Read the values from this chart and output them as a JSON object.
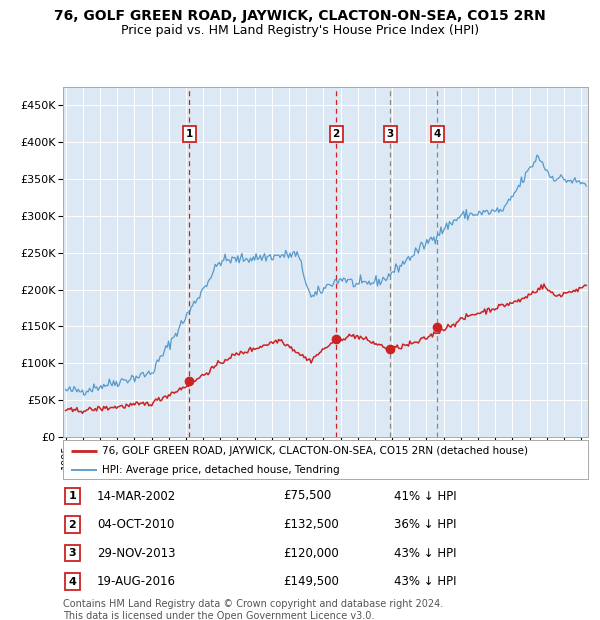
{
  "title": "76, GOLF GREEN ROAD, JAYWICK, CLACTON-ON-SEA, CO15 2RN",
  "subtitle": "Price paid vs. HM Land Registry's House Price Index (HPI)",
  "ylim": [
    0,
    475000
  ],
  "yticks": [
    0,
    50000,
    100000,
    150000,
    200000,
    250000,
    300000,
    350000,
    400000,
    450000
  ],
  "ytick_labels": [
    "£0",
    "£50K",
    "£100K",
    "£150K",
    "£200K",
    "£250K",
    "£300K",
    "£350K",
    "£400K",
    "£450K"
  ],
  "background_color": "#ffffff",
  "plot_bg_color": "#dce9f5",
  "grid_color": "#ffffff",
  "hpi_color": "#5599cc",
  "price_color": "#cc2222",
  "sale_marker_color": "#cc2222",
  "dashed_line_color_red": "#cc2222",
  "dashed_line_color_gray": "#888888",
  "transactions": [
    {
      "label": "1",
      "date": "14-MAR-2002",
      "date_num": 2002.2,
      "price": 75500,
      "pct": "41% ↓ HPI"
    },
    {
      "label": "2",
      "date": "04-OCT-2010",
      "date_num": 2010.75,
      "price": 132500,
      "pct": "36% ↓ HPI"
    },
    {
      "label": "3",
      "date": "29-NOV-2013",
      "date_num": 2013.9,
      "price": 120000,
      "pct": "43% ↓ HPI"
    },
    {
      "label": "4",
      "date": "19-AUG-2016",
      "date_num": 2016.63,
      "price": 149500,
      "pct": "43% ↓ HPI"
    }
  ],
  "legend_entries": [
    "76, GOLF GREEN ROAD, JAYWICK, CLACTON-ON-SEA, CO15 2RN (detached house)",
    "HPI: Average price, detached house, Tendring"
  ],
  "footnote": "Contains HM Land Registry data © Crown copyright and database right 2024.\nThis data is licensed under the Open Government Licence v3.0.",
  "title_fontsize": 10,
  "subtitle_fontsize": 9,
  "tick_fontsize": 8,
  "legend_fontsize": 8
}
